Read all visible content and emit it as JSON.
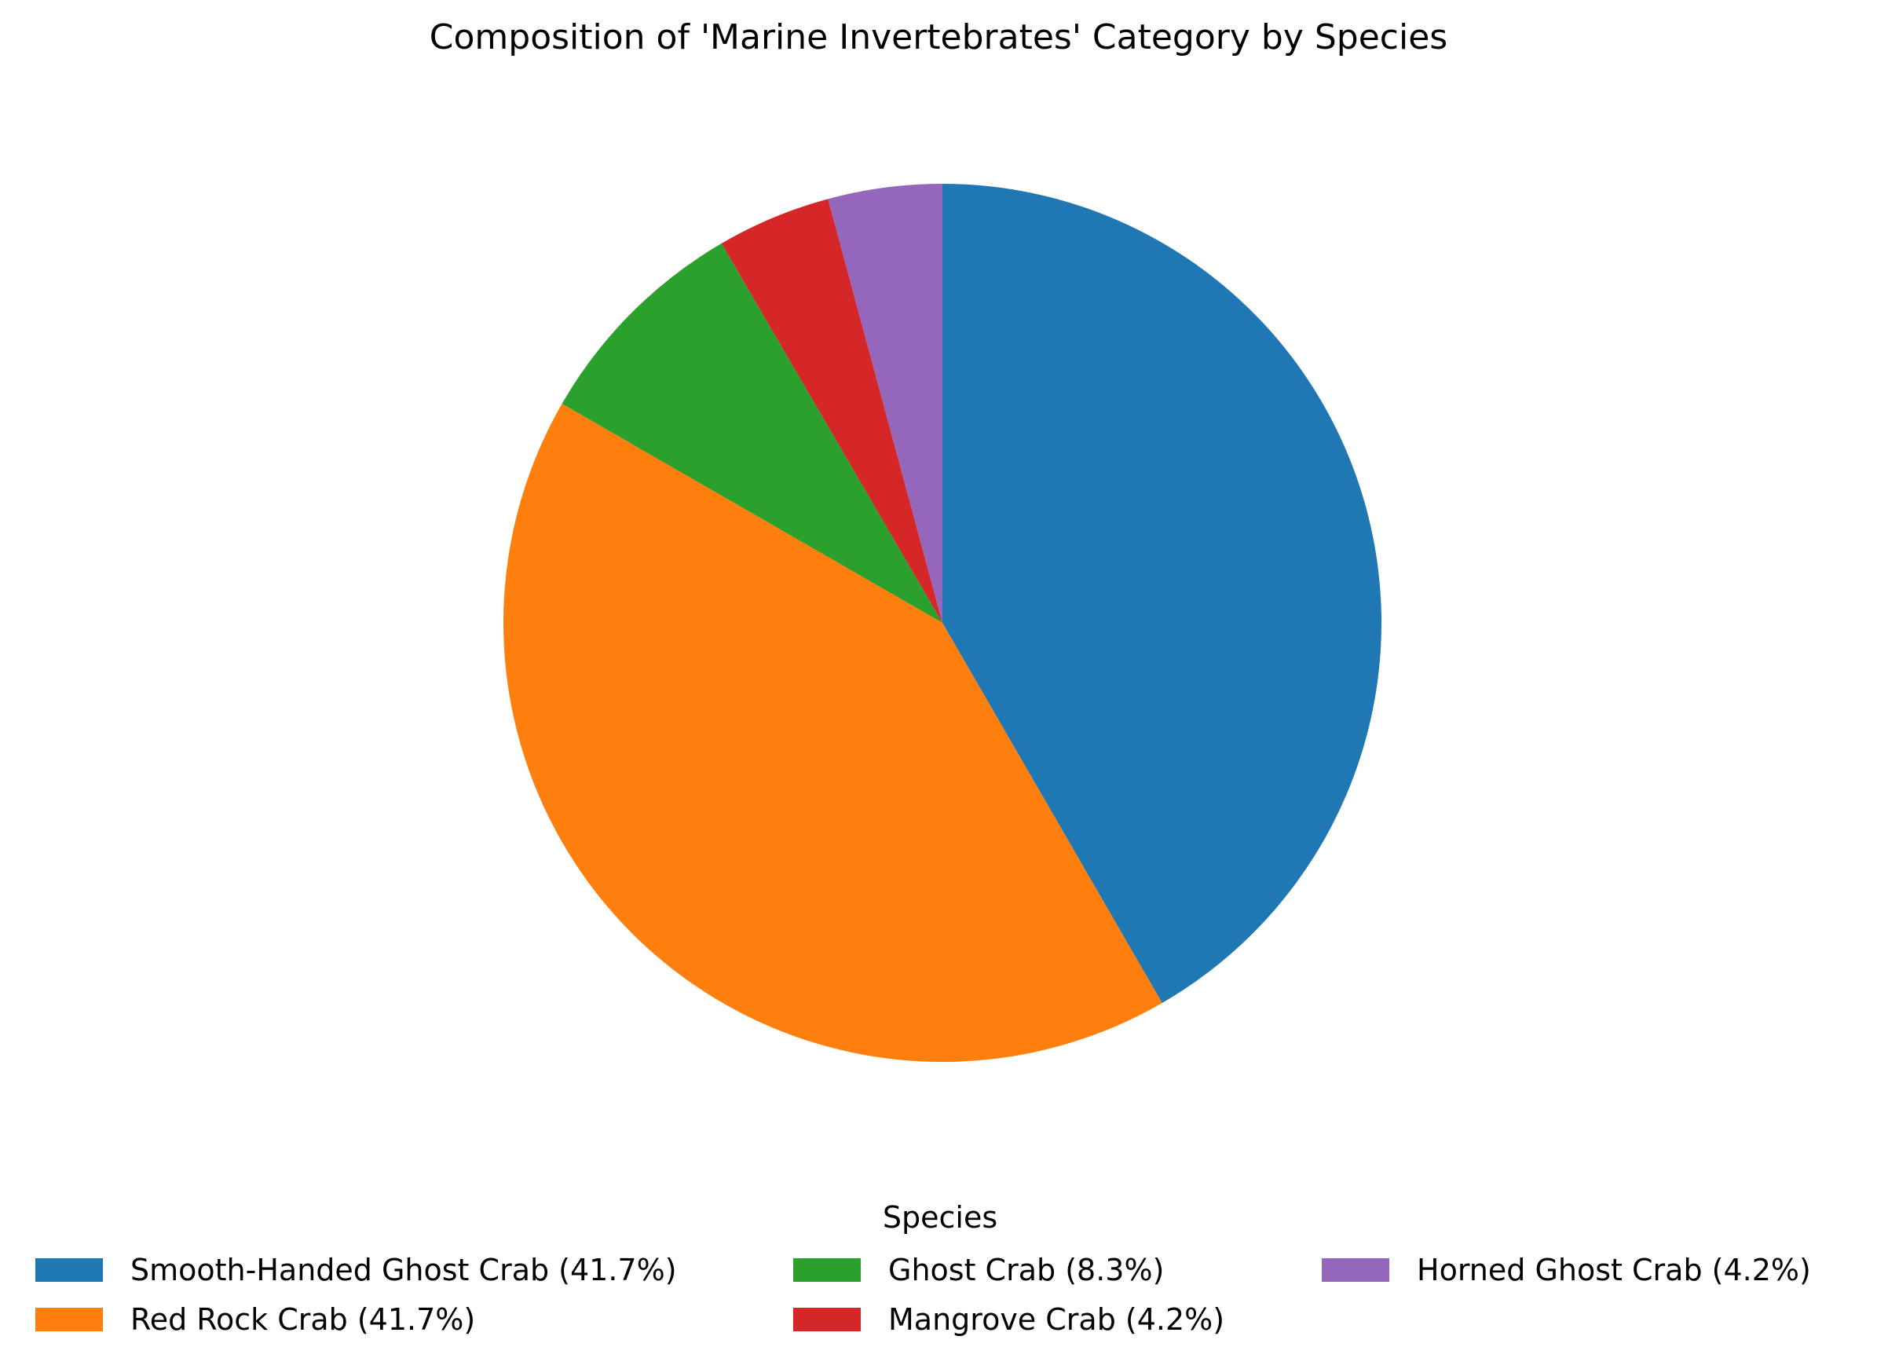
{
  "chart_data": {
    "type": "pie",
    "title": "Composition of 'Marine Invertebrates' Category by Species",
    "categories": [
      "Smooth-Handed Ghost Crab",
      "Red Rock Crab",
      "Ghost Crab",
      "Mangrove Crab",
      "Horned Ghost Crab"
    ],
    "values": [
      41.7,
      41.7,
      8.3,
      4.2,
      4.2
    ],
    "colors": [
      "#1f77b4",
      "#ff7f0e",
      "#2ca02c",
      "#d62728",
      "#9467bd"
    ],
    "start_angle": "top",
    "direction": "clockwise",
    "legend": {
      "title": "Species",
      "placement": "bottom-center",
      "columns": 3,
      "labels": [
        "Smooth-Handed Ghost Crab (41.7%)",
        "Red Rock Crab (41.7%)",
        "Ghost Crab (8.3%)",
        "Mangrove Crab (4.2%)",
        "Horned Ghost Crab (4.2%)"
      ]
    }
  }
}
